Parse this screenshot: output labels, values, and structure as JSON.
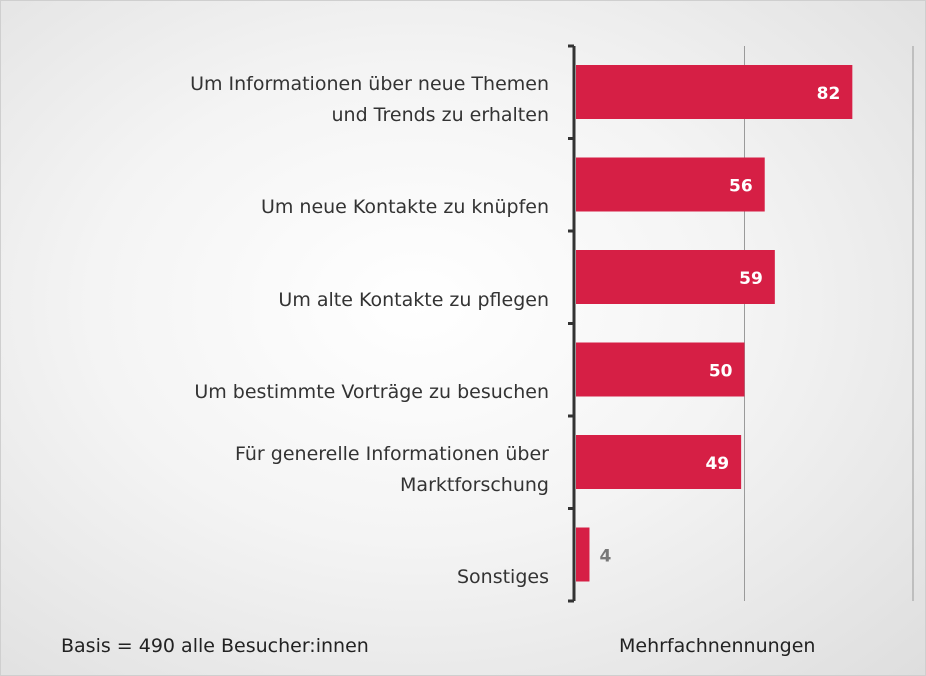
{
  "chart_data": {
    "type": "barh",
    "categories": [
      "Um Informationen über neue Themen\nund Trends zu erhalten",
      "Um neue Kontakte zu knüpfen",
      "Um alte Kontakte zu pflegen",
      "Um bestimmte Vorträge zu besuchen",
      "Für generelle Informationen über\nMarktforschung",
      "Sonstiges"
    ],
    "values": [
      82,
      56,
      59,
      50,
      49,
      4
    ],
    "color": "#d61f45",
    "xlim": [
      0,
      100
    ],
    "xticks": [
      0,
      50,
      100
    ],
    "grid": true,
    "annotations": [
      "Basis = 490 alle Besucher:innen",
      "Mehrfachnennungen"
    ]
  }
}
